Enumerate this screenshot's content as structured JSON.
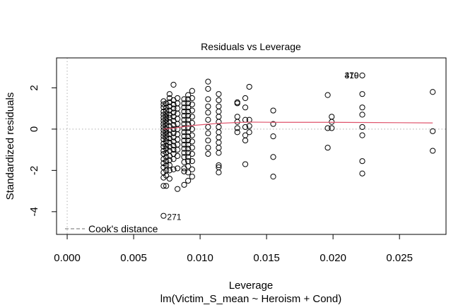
{
  "chart_data": {
    "type": "scatter",
    "title": "Residuals vs Leverage",
    "xlabel": "Leverage",
    "subtitle": "lm(Victim_S_mean ~ Heroism + Cond)",
    "ylabel": "Standardized residuals",
    "xlim": [
      -0.0008,
      0.0285
    ],
    "ylim": [
      -5.1,
      3.45
    ],
    "xticks": [
      {
        "value": 0.0,
        "label": "0.000"
      },
      {
        "value": 0.005,
        "label": "0.005"
      },
      {
        "value": 0.01,
        "label": "0.010"
      },
      {
        "value": 0.015,
        "label": "0.015"
      },
      {
        "value": 0.02,
        "label": "0.020"
      },
      {
        "value": 0.025,
        "label": "0.025"
      }
    ],
    "yticks": [
      {
        "value": -4,
        "label": "-4"
      },
      {
        "value": -2,
        "label": "-2"
      },
      {
        "value": 0,
        "label": "0"
      },
      {
        "value": 2,
        "label": "2"
      }
    ],
    "legend": {
      "label": "Cook's distance",
      "position": "bottom-left"
    },
    "colors": {
      "points": "#000000",
      "smooth": "#df536b",
      "reference": "#bebebe",
      "cooks": "#8c8c8c"
    },
    "columns": [
      {
        "x": 0.00725,
        "y": [
          1.35,
          1.2,
          1.05,
          0.85,
          0.7,
          0.55,
          0.4,
          0.25,
          0.1,
          -0.05,
          -0.2,
          -0.35,
          -0.5,
          -0.7,
          -0.85,
          -1.05,
          -1.2,
          -1.45,
          -1.65,
          -1.85,
          -2.1,
          -2.35,
          -2.75
        ]
      },
      {
        "x": 0.00745,
        "y": [
          1.25,
          1.05,
          0.9,
          0.75,
          0.6,
          0.45,
          0.3,
          0.15,
          0.0,
          -0.15,
          -0.3,
          -0.45,
          -0.6,
          -0.8,
          -0.95,
          -1.15,
          -1.35,
          -1.55,
          -1.75,
          -2.0,
          -2.25,
          -2.75
        ]
      },
      {
        "x": 0.0077,
        "y": [
          1.7,
          1.5,
          1.3,
          1.1,
          0.9,
          0.7,
          0.55,
          0.35,
          0.15,
          -0.05,
          -0.25,
          -0.45,
          -0.65,
          -0.85,
          -1.05,
          -1.3,
          -1.5,
          -1.75,
          -2.0,
          -2.4
        ]
      },
      {
        "x": 0.008,
        "y": [
          2.15,
          1.4,
          1.2,
          1.0,
          0.8,
          0.6,
          0.4,
          0.2,
          0.0,
          -0.2,
          -0.4,
          -0.6,
          -0.8,
          -1.0,
          -1.2,
          -1.45,
          -1.95
        ]
      },
      {
        "x": 0.0083,
        "y": [
          1.5,
          1.25,
          1.0,
          0.75,
          0.5,
          0.25,
          0.0,
          -0.25,
          -0.5,
          -0.75,
          -1.0,
          -1.3,
          -1.9,
          -2.9
        ]
      },
      {
        "x": 0.0088,
        "y": [
          1.45,
          1.25,
          1.05,
          0.85,
          0.65,
          0.45,
          0.25,
          0.05,
          -0.15,
          -0.35,
          -0.55,
          -0.75,
          -0.95,
          -1.15,
          -1.35,
          -1.6,
          -1.9,
          -2.05,
          -2.7
        ]
      },
      {
        "x": 0.0091,
        "y": [
          1.65,
          1.45,
          1.25,
          1.05,
          0.85,
          0.65,
          0.45,
          0.25,
          0.05,
          -0.15,
          -0.35,
          -0.55,
          -0.75,
          -0.95,
          -1.15,
          -1.35,
          -1.55,
          -1.8,
          -2.1,
          -2.5
        ]
      },
      {
        "x": 0.0094,
        "y": [
          1.85,
          1.5,
          1.2,
          0.9,
          0.6,
          0.3,
          0.0,
          -0.3,
          -0.6,
          -0.9,
          -1.2,
          -1.55,
          -1.95,
          -2.3
        ]
      },
      {
        "x": 0.0106,
        "y": [
          2.3,
          1.95,
          1.45,
          1.1,
          0.8,
          0.45,
          0.1,
          -0.2,
          -0.55,
          -0.9,
          -1.2
        ]
      },
      {
        "x": 0.0114,
        "y": [
          1.7,
          1.4,
          1.1,
          0.85,
          0.6,
          0.35,
          0.1,
          -0.15,
          -0.4,
          -0.65,
          -0.9,
          -1.15,
          -1.75,
          -1.85,
          -2.1
        ]
      },
      {
        "x": 0.0128,
        "y": [
          1.3,
          1.25,
          0.6,
          0.35,
          0.05,
          -0.15
        ]
      },
      {
        "x": 0.0134,
        "y": [
          1.5,
          1.05,
          0.45,
          0.1,
          -0.3,
          -0.55,
          -1.7
        ]
      },
      {
        "x": 0.0137,
        "y": [
          2.05,
          0.45,
          0.15,
          -0.15
        ]
      },
      {
        "x": 0.0155,
        "y": [
          0.9,
          0.25,
          -0.35,
          -1.35,
          -2.3
        ]
      },
      {
        "x": 0.0196,
        "y": [
          1.65,
          0.05,
          -0.9
        ]
      },
      {
        "x": 0.0199,
        "y": [
          0.6,
          0.35,
          0.05
        ]
      },
      {
        "x": 0.0222,
        "y": [
          2.6,
          1.7,
          1.05,
          0.7,
          0.1,
          -0.3,
          -1.55,
          -2.15
        ]
      },
      {
        "x": 0.0275,
        "y": [
          1.8,
          -0.1,
          -1.05
        ]
      }
    ],
    "points": [
      {
        "x": 0.00725,
        "y": -4.2,
        "label": "271"
      }
    ],
    "point_labels": [
      {
        "x": 0.0222,
        "y": 2.6,
        "label": "470"
      },
      {
        "x": 0.0222,
        "y": 2.6,
        "label": "319"
      }
    ],
    "smooth": {
      "x": [
        0.00725,
        0.008,
        0.0088,
        0.0095,
        0.0106,
        0.0114,
        0.0128,
        0.0137,
        0.0155,
        0.0175,
        0.0199,
        0.0222,
        0.025,
        0.0275
      ],
      "y": [
        0.0,
        0.05,
        0.12,
        0.18,
        0.24,
        0.28,
        0.32,
        0.34,
        0.33,
        0.33,
        0.33,
        0.32,
        0.31,
        0.3
      ]
    }
  }
}
